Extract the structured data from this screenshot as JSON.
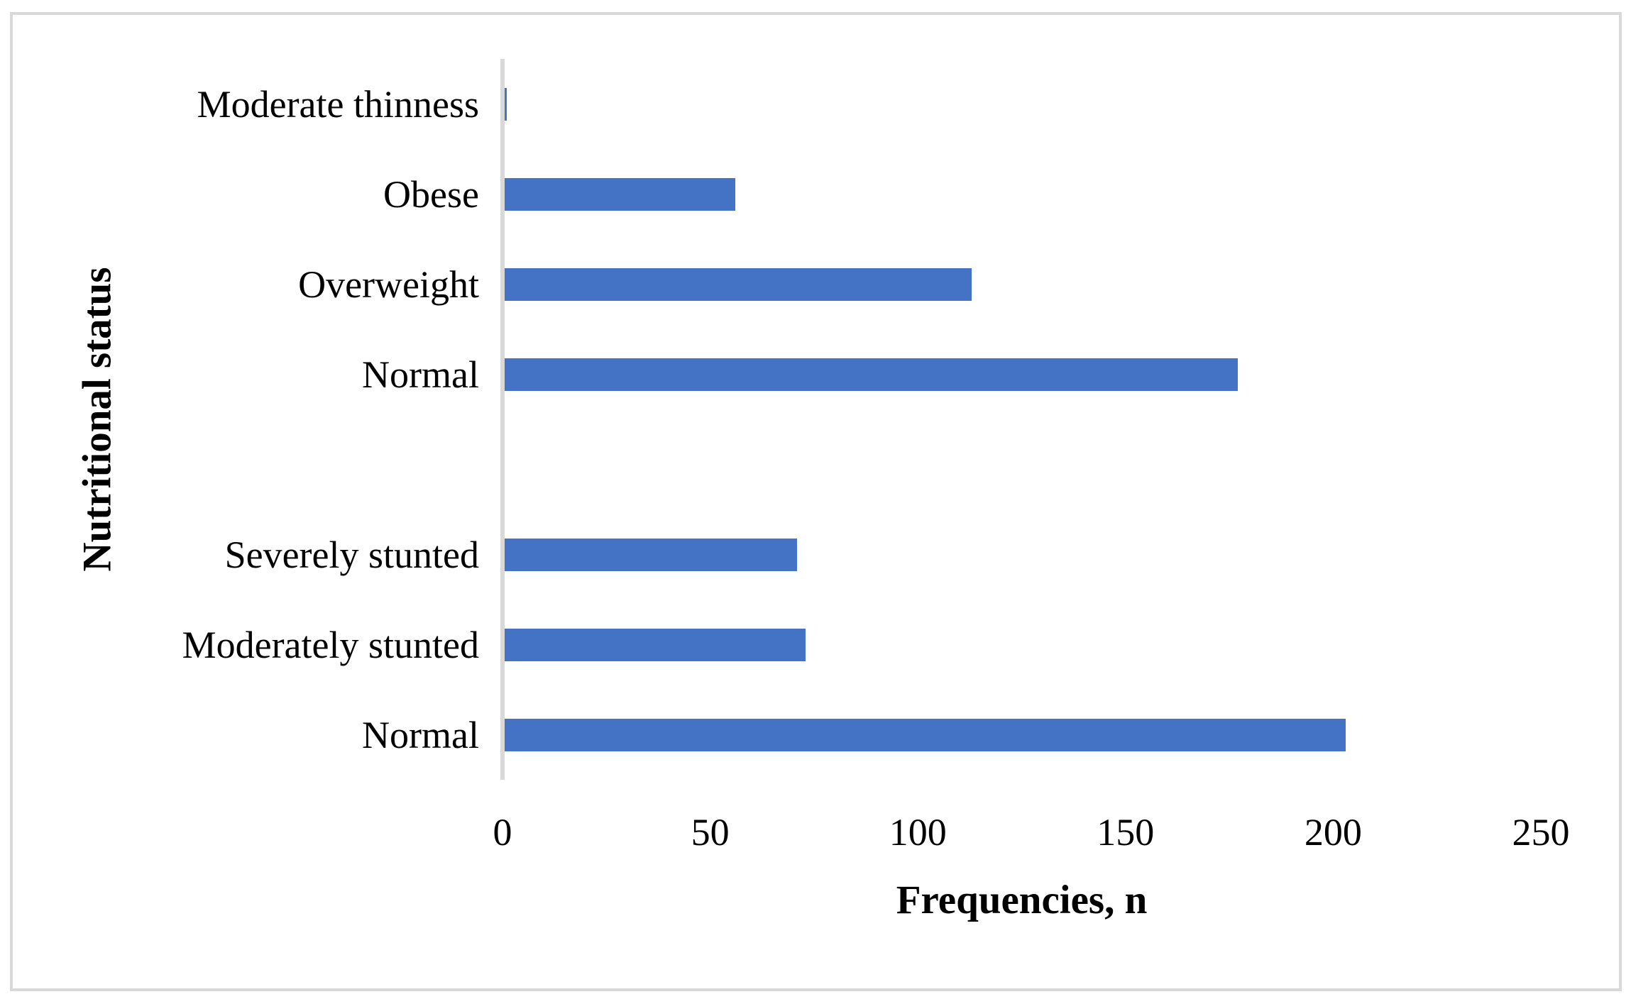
{
  "chart_data": {
    "type": "bar",
    "orientation": "horizontal",
    "title": "",
    "xlabel": "Frequencies, n",
    "ylabel": "Nutritional status",
    "categories": [
      "Moderate thinness",
      "Obese",
      "Overweight",
      "Normal",
      "",
      "Severely stunted",
      "Moderately stunted",
      "Normal"
    ],
    "values": [
      1,
      56,
      113,
      177,
      null,
      71,
      73,
      203
    ],
    "x_ticks": [
      "0",
      "50",
      "100",
      "150",
      "200",
      "250"
    ],
    "x_tick_values": [
      0,
      50,
      100,
      150,
      200,
      250
    ],
    "xlim": [
      0,
      250
    ],
    "bar_color": "#4472C4",
    "axis_line_color": "#D9D9D9",
    "grid": false,
    "legend_position": "none"
  }
}
